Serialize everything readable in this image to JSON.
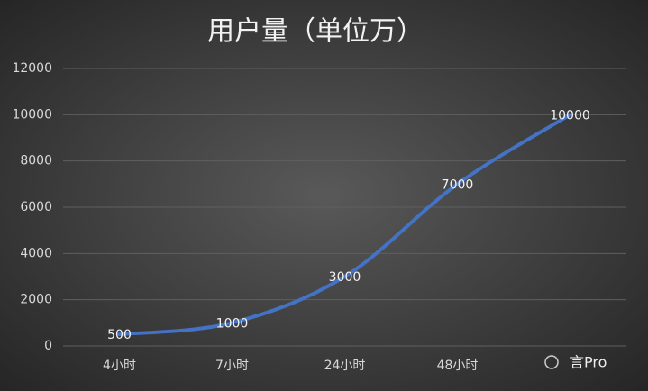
{
  "chart_data": {
    "type": "line",
    "title": "用户量（单位万）",
    "categories": [
      "4小时",
      "7小时",
      "24小时",
      "48小时",
      null
    ],
    "series": [
      {
        "name": "用户量",
        "color": "#4472c4",
        "values": [
          500,
          1000,
          3000,
          7000,
          10000
        ]
      }
    ],
    "ylim": [
      0,
      12000
    ],
    "yticks": [
      0,
      2000,
      4000,
      6000,
      8000,
      10000,
      12000
    ],
    "grid": true,
    "smooth": true,
    "data_labels": true,
    "watermark": "言Pro"
  }
}
